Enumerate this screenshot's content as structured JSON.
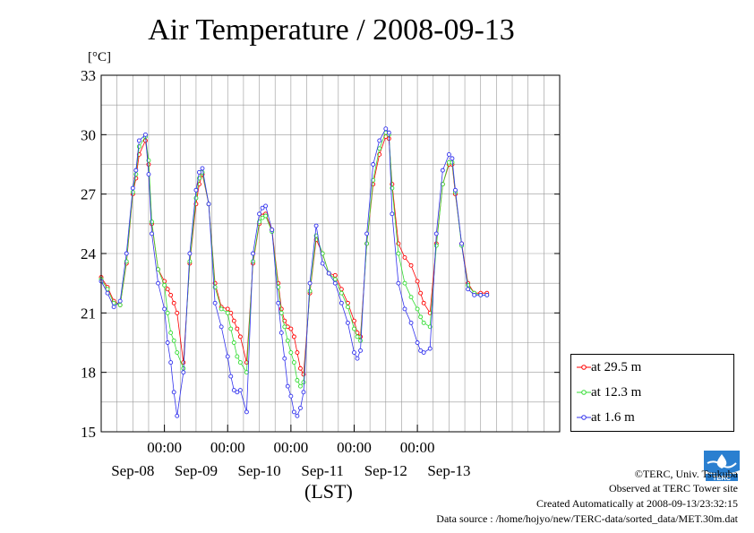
{
  "chart_data": {
    "type": "line",
    "title": "Air Temperature / 2008-09-13",
    "ylabel": "[°C]",
    "xlabel": "(LST)",
    "ylim": [
      15,
      33
    ],
    "yticks": [
      15,
      18,
      21,
      24,
      27,
      30,
      33
    ],
    "x_range_hours": [
      0,
      145
    ],
    "time_labels": [
      "00:00",
      "00:00",
      "00:00",
      "00:00",
      "00:00"
    ],
    "time_label_hours": [
      20,
      40,
      60,
      80,
      100
    ],
    "day_labels": [
      "Sep-08",
      "Sep-09",
      "Sep-10",
      "Sep-11",
      "Sep-12",
      "Sep-13"
    ],
    "day_label_hours": [
      10,
      30,
      50,
      70,
      90,
      110
    ],
    "grid": true,
    "legend_position": "lower-right outside plot",
    "series": [
      {
        "name": "at 29.5 m",
        "color": "#ff0000",
        "x": [
          0,
          2,
          4,
          6,
          8,
          10,
          11,
          12,
          14,
          15,
          16,
          18,
          20,
          21,
          22,
          23,
          24,
          26,
          28,
          30,
          31,
          32,
          34,
          36,
          38,
          40,
          41,
          42,
          43,
          44,
          46,
          48,
          50,
          51,
          52,
          54,
          56,
          57,
          58,
          59,
          60,
          61,
          62,
          63,
          64,
          66,
          68,
          70,
          72,
          74,
          76,
          78,
          80,
          81,
          82,
          84,
          86,
          88,
          90,
          91,
          92,
          94,
          96,
          98,
          100,
          101,
          102,
          104,
          106,
          108,
          110,
          111,
          112,
          114,
          116,
          118,
          120,
          122
        ],
        "y": [
          22.8,
          22.3,
          21.6,
          21.4,
          23.5,
          27.0,
          27.8,
          29.0,
          29.7,
          28.5,
          25.5,
          23.2,
          22.6,
          22.2,
          21.9,
          21.5,
          21.0,
          18.5,
          23.5,
          26.5,
          27.5,
          28.0,
          26.5,
          22.5,
          21.3,
          21.2,
          21.0,
          20.6,
          20.2,
          19.8,
          18.5,
          23.5,
          25.5,
          25.9,
          26.0,
          25.2,
          22.5,
          21.2,
          20.6,
          20.3,
          20.2,
          19.8,
          19.0,
          18.2,
          17.9,
          22.0,
          24.7,
          24.0,
          23.0,
          22.9,
          22.2,
          21.5,
          20.6,
          20.0,
          19.8,
          24.5,
          27.5,
          29.0,
          29.9,
          29.8,
          27.5,
          24.5,
          23.8,
          23.4,
          22.6,
          22.0,
          21.5,
          21.0,
          24.5,
          27.5,
          28.5,
          28.5,
          27.0,
          24.5,
          22.5,
          22.0,
          22.0,
          22.0
        ]
      },
      {
        "name": "at 12.3 m",
        "color": "#33dd33",
        "x": [
          0,
          2,
          4,
          6,
          8,
          10,
          11,
          12,
          14,
          15,
          16,
          18,
          20,
          21,
          22,
          23,
          24,
          26,
          28,
          30,
          31,
          32,
          34,
          36,
          38,
          40,
          41,
          42,
          43,
          44,
          46,
          48,
          50,
          51,
          52,
          54,
          56,
          57,
          58,
          59,
          60,
          61,
          62,
          63,
          64,
          66,
          68,
          70,
          72,
          74,
          76,
          78,
          80,
          81,
          82,
          84,
          86,
          88,
          90,
          91,
          92,
          94,
          96,
          98,
          100,
          101,
          102,
          104,
          106,
          108,
          110,
          111,
          112,
          114,
          116,
          118,
          120,
          122
        ],
        "y": [
          22.7,
          22.2,
          21.5,
          21.4,
          23.6,
          27.1,
          28.0,
          29.4,
          29.9,
          28.7,
          25.6,
          23.2,
          22.4,
          21.0,
          20.0,
          19.6,
          19.0,
          18.2,
          23.6,
          26.8,
          27.8,
          28.1,
          26.5,
          22.3,
          21.2,
          21.0,
          20.2,
          19.5,
          18.8,
          18.5,
          18.0,
          23.6,
          25.6,
          25.8,
          25.9,
          25.1,
          22.3,
          21.0,
          20.3,
          19.6,
          19.0,
          18.5,
          17.6,
          17.3,
          17.5,
          22.1,
          24.9,
          24.0,
          23.0,
          22.7,
          22.0,
          21.3,
          20.2,
          19.8,
          19.6,
          24.5,
          27.7,
          29.3,
          30.1,
          30.0,
          27.3,
          24.0,
          22.5,
          21.8,
          21.2,
          20.8,
          20.5,
          20.3,
          24.4,
          27.5,
          28.6,
          28.6,
          27.1,
          24.4,
          22.4,
          22.0,
          21.9,
          21.9
        ]
      },
      {
        "name": "at 1.6 m",
        "color": "#3333ee",
        "x": [
          0,
          2,
          4,
          6,
          8,
          10,
          11,
          12,
          14,
          15,
          16,
          18,
          20,
          21,
          22,
          23,
          24,
          26,
          28,
          30,
          31,
          32,
          34,
          36,
          38,
          40,
          41,
          42,
          43,
          44,
          46,
          48,
          50,
          51,
          52,
          54,
          56,
          57,
          58,
          59,
          60,
          61,
          62,
          63,
          64,
          66,
          68,
          70,
          72,
          74,
          76,
          78,
          80,
          81,
          82,
          84,
          86,
          88,
          90,
          91,
          92,
          94,
          96,
          98,
          100,
          101,
          102,
          104,
          106,
          108,
          110,
          111,
          112,
          114,
          116,
          118,
          120,
          122
        ],
        "y": [
          22.6,
          22.0,
          21.3,
          21.6,
          24.0,
          27.3,
          28.2,
          29.7,
          30.0,
          28.0,
          25.0,
          22.5,
          21.2,
          19.5,
          18.5,
          17.0,
          15.8,
          18.0,
          24.0,
          27.2,
          28.1,
          28.3,
          26.5,
          21.5,
          20.3,
          18.8,
          17.8,
          17.1,
          17.0,
          17.1,
          16.0,
          24.0,
          26.0,
          26.3,
          26.4,
          25.2,
          21.5,
          20.0,
          18.7,
          17.3,
          16.8,
          16.0,
          15.8,
          16.2,
          17.0,
          22.5,
          25.4,
          23.5,
          23.0,
          22.5,
          21.5,
          20.5,
          19.0,
          18.7,
          19.1,
          25.0,
          28.5,
          29.7,
          30.3,
          30.1,
          26.0,
          22.5,
          21.2,
          20.5,
          19.5,
          19.1,
          19.0,
          19.2,
          25.0,
          28.2,
          29.0,
          28.8,
          27.2,
          24.5,
          22.2,
          21.9,
          21.9,
          21.9
        ]
      }
    ]
  },
  "legend": [
    {
      "label": "at 29.5 m",
      "color": "#ff0000"
    },
    {
      "label": "at 12.3 m",
      "color": "#33dd33"
    },
    {
      "label": "at 1.6 m",
      "color": "#3333ee"
    }
  ],
  "logo_icon": "terc-logo-icon",
  "logo_text": "TERC",
  "credits": {
    "copyright": "©TERC, Univ. Tsukuba",
    "observed": "Observed at TERC Tower site",
    "created": "Created Automatically at 2008-09-13/23:32:15",
    "source": "Data source : /home/hojyo/new/TERC-data/sorted_data/MET.30m.dat"
  }
}
